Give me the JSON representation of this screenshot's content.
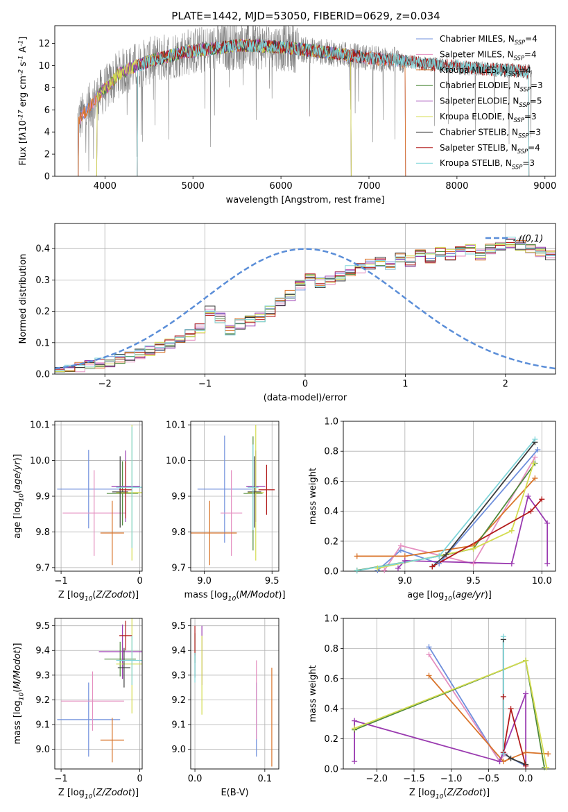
{
  "title": "PLATE=1442, MJD=53050, FIBERID=0629, z=0.034",
  "colors": [
    "#6f8fdc",
    "#e58fc0",
    "#d9742a",
    "#4f8a3c",
    "#9a3bb0",
    "#d4dc50",
    "#3a3a3a",
    "#b21a1a",
    "#7fd5d9"
  ],
  "chart_data": [
    {
      "id": "spectrum",
      "type": "line",
      "xlabel": "wavelength [Angstrom, rest frame]",
      "ylabel": "Flux [f$\\lambda$10$^{-17}$ erg cm$^{-2}$ s$^{-1}$ A$^{-1}$]",
      "xlim": [
        3430,
        9120
      ],
      "ylim": [
        0,
        13.6
      ],
      "xticks": [
        4000,
        5000,
        6000,
        7000,
        8000,
        9000
      ],
      "yticks": [
        0,
        2,
        4,
        6,
        8,
        10,
        12
      ],
      "grid": false,
      "legend_position": "top-right",
      "data_color": "#808080",
      "continuum": {
        "x": [
          3690,
          3750,
          3850,
          3950,
          4050,
          4150,
          4300,
          4500,
          4700,
          4900,
          5100,
          5300,
          5500,
          5700,
          5900,
          6100,
          6300,
          6500,
          6700,
          6900,
          7100,
          7300,
          7500,
          7700,
          7900,
          8100,
          8300,
          8500,
          8700,
          8850
        ],
        "y": [
          5.0,
          5.5,
          6.5,
          7.5,
          8.2,
          9.2,
          9.8,
          10.4,
          10.8,
          11.2,
          11.4,
          11.6,
          11.8,
          11.8,
          11.7,
          11.6,
          11.4,
          11.2,
          11.0,
          10.8,
          10.6,
          10.5,
          10.3,
          10.1,
          10.0,
          9.8,
          9.7,
          9.6,
          9.5,
          9.4
        ]
      },
      "series": [
        {
          "name": "Chabrier MILES, N$_{SSP}$=4",
          "x_start": 3690,
          "x_end": 7420
        },
        {
          "name": "Salpeter MILES, N$_{SSP}$=4",
          "x_start": 3690,
          "x_end": 7420
        },
        {
          "name": "Kroupa MILES, N$_{SSP}$=4",
          "x_start": 3690,
          "x_end": 7420
        },
        {
          "name": "Chabrier ELODIE, N$_{SSP}$=3",
          "x_start": 3900,
          "x_end": 6800
        },
        {
          "name": "Salpeter ELODIE, N$_{SSP}$=5",
          "x_start": 3900,
          "x_end": 6800
        },
        {
          "name": "Kroupa ELODIE, N$_{SSP}$=3",
          "x_start": 3900,
          "x_end": 6800
        },
        {
          "name": "Chabrier STELIB, N$_{SSP}$=3",
          "x_start": 4360,
          "x_end": 8820
        },
        {
          "name": "Salpeter STELIB, N$_{SSP}$=4",
          "x_start": 4360,
          "x_end": 8820
        },
        {
          "name": "Kroupa STELIB, N$_{SSP}$=3",
          "x_start": 4360,
          "x_end": 8820
        }
      ]
    },
    {
      "id": "residuals",
      "type": "line",
      "xlabel": "(data-model)/error",
      "ylabel": "Normed distribution",
      "xlim": [
        -2.5,
        2.5
      ],
      "ylim": [
        0,
        0.48
      ],
      "xticks": [
        -2,
        -1,
        0,
        1,
        2
      ],
      "xtick_labels": [
        "−2",
        "−1",
        "0",
        "1",
        "2"
      ],
      "yticks": [
        0.0,
        0.1,
        0.2,
        0.3,
        0.4
      ],
      "ytick_labels": [
        "0.0",
        "0.1",
        "0.2",
        "0.3",
        "0.4"
      ],
      "grid": true,
      "legend": "$\\mathcal{N}(0,1)$",
      "legend_position": "top-right",
      "bin_width": 0.1,
      "bin_start": -2.5,
      "histogram_base": [
        0.012,
        0.018,
        0.02,
        0.03,
        0.034,
        0.04,
        0.05,
        0.056,
        0.066,
        0.075,
        0.087,
        0.098,
        0.11,
        0.125,
        0.145,
        0.2,
        0.18,
        0.14,
        0.16,
        0.17,
        0.18,
        0.2,
        0.23,
        0.25,
        0.28,
        0.31,
        0.29,
        0.3,
        0.31,
        0.33,
        0.34,
        0.35,
        0.36,
        0.35,
        0.37,
        0.36,
        0.38,
        0.37,
        0.39,
        0.38,
        0.39,
        0.4,
        0.38,
        0.4,
        0.41,
        0.42,
        0.41,
        0.4,
        0.39,
        0.38,
        0.4,
        0.41,
        0.43,
        0.42,
        0.41,
        0.4,
        0.38,
        0.36,
        0.33,
        0.34,
        0.35,
        0.31,
        0.29,
        0.27,
        0.24,
        0.25,
        0.22,
        0.2,
        0.17,
        0.16,
        0.15,
        0.13,
        0.1,
        0.09,
        0.08,
        0.07,
        0.06,
        0.05,
        0.04,
        0.05,
        0.04,
        0.035,
        0.03,
        0.028,
        0.028,
        0.025,
        0.03,
        0.028,
        0.025,
        0.028
      ]
    },
    {
      "id": "age-vs-Z",
      "type": "scatter",
      "xlabel": "Z [log$_{10}$($Z/Z_\\odot$)]",
      "ylabel": "age  [log$_{10}$($age/yr$)]",
      "xlim": [
        -1.08,
        0.03
      ],
      "ylim": [
        9.69,
        10.11
      ],
      "xticks": [
        -1,
        0
      ],
      "xtick_labels": [
        "−1",
        "0"
      ],
      "yticks": [
        9.7,
        9.8,
        9.9,
        10.0,
        10.1
      ],
      "ytick_labels": [
        "9.7",
        "9.8",
        "9.9",
        "10.0",
        "10.1"
      ],
      "grid": true,
      "points": [
        {
          "x": -0.65,
          "y": 9.92,
          "xerr": 0.4,
          "yerr": 0.11
        },
        {
          "x": -0.58,
          "y": 9.853,
          "xerr": 0.4,
          "yerr": 0.12
        },
        {
          "x": -0.35,
          "y": 9.797,
          "xerr": 0.15,
          "yerr": 0.09
        },
        {
          "x": -0.22,
          "y": 9.908,
          "xerr": 0.2,
          "yerr": 0.09
        },
        {
          "x": -0.18,
          "y": 9.928,
          "xerr": 0.18,
          "yerr": 0.1
        },
        {
          "x": -0.1,
          "y": 9.91,
          "xerr": 0.2,
          "yerr": 0.19
        },
        {
          "x": -0.25,
          "y": 9.912,
          "xerr": 0.1,
          "yerr": 0.1
        },
        {
          "x": -0.18,
          "y": 9.918,
          "xerr": 0.08,
          "yerr": 0.08
        },
        {
          "x": -0.1,
          "y": 9.925,
          "xerr": 0.2,
          "yerr": 0.17
        }
      ]
    },
    {
      "id": "age-vs-mass",
      "type": "scatter",
      "xlabel": "mass [log$_{10}$($M/M_\\odot$)]",
      "ylabel": "",
      "xlim": [
        8.9,
        9.55
      ],
      "ylim": [
        9.69,
        10.11
      ],
      "xticks": [
        9.0,
        9.5
      ],
      "xtick_labels": [
        "9.0",
        "9.5"
      ],
      "yticks": [
        9.7,
        9.8,
        9.9,
        10.0,
        10.1
      ],
      "ytick_labels": [
        "9.7",
        "9.8",
        "9.9",
        "10.0",
        "10.1"
      ],
      "grid": true,
      "points": [
        {
          "x": 9.15,
          "y": 9.92,
          "xerr": 0.2,
          "yerr": 0.15
        },
        {
          "x": 9.2,
          "y": 9.853,
          "xerr": 0.08,
          "yerr": 0.12
        },
        {
          "x": 9.04,
          "y": 9.797,
          "xerr": 0.2,
          "yerr": 0.09
        },
        {
          "x": 9.36,
          "y": 9.908,
          "xerr": 0.07,
          "yerr": 0.16
        },
        {
          "x": 9.38,
          "y": 9.928,
          "xerr": 0.07,
          "yerr": 0.1
        },
        {
          "x": 9.38,
          "y": 9.91,
          "xerr": 0.06,
          "yerr": 0.19
        },
        {
          "x": 9.37,
          "y": 9.912,
          "xerr": 0.05,
          "yerr": 0.1
        },
        {
          "x": 9.46,
          "y": 9.918,
          "xerr": 0.06,
          "yerr": 0.07
        },
        {
          "x": 9.36,
          "y": 9.925,
          "xerr": 0.04,
          "yerr": 0.12
        }
      ]
    },
    {
      "id": "weight-vs-age",
      "type": "line",
      "xlabel": "age  [log$_{10}$($age/yr$)]",
      "ylabel": "mass weight",
      "xlim": [
        8.55,
        10.1
      ],
      "ylim": [
        0,
        1.0
      ],
      "xticks": [
        9.0,
        9.5,
        10.0
      ],
      "xtick_labels": [
        "9.0",
        "9.5",
        "10.0"
      ],
      "yticks": [
        0.0,
        0.2,
        0.4,
        0.6,
        0.8,
        1.0
      ],
      "ytick_labels": [
        "0.0",
        "0.2",
        "0.4",
        "0.6",
        "0.8",
        "1.0"
      ],
      "grid": true,
      "series": [
        {
          "x": [
            8.8,
            8.97,
            9.25,
            9.97
          ],
          "y": [
            0.005,
            0.14,
            0.05,
            0.81
          ]
        },
        {
          "x": [
            8.85,
            8.97,
            9.5,
            9.95
          ],
          "y": [
            0.005,
            0.17,
            0.05,
            0.76
          ]
        },
        {
          "x": [
            8.65,
            9.0,
            9.5,
            9.95
          ],
          "y": [
            0.1,
            0.1,
            0.17,
            0.62
          ]
        },
        {
          "x": [
            8.65,
            9.25,
            9.5,
            9.95
          ],
          "y": [
            0.005,
            0.1,
            0.15,
            0.72
          ]
        },
        {
          "x": [
            8.95,
            9.0,
            9.78,
            9.9,
            10.04,
            10.04
          ],
          "y": [
            0.02,
            0.07,
            0.05,
            0.5,
            0.32,
            0.05
          ]
        },
        {
          "x": [
            8.8,
            9.5,
            9.78,
            9.94
          ],
          "y": [
            0.02,
            0.15,
            0.27,
            0.72
          ]
        },
        {
          "x": [
            9.2,
            9.3,
            9.95
          ],
          "y": [
            0.03,
            0.11,
            0.86
          ]
        },
        {
          "x": [
            9.2,
            9.92,
            10.0
          ],
          "y": [
            0.03,
            0.4,
            0.48
          ]
        },
        {
          "x": [
            8.65,
            9.25,
            9.95
          ],
          "y": [
            0.003,
            0.1,
            0.88
          ]
        }
      ]
    },
    {
      "id": "mass-vs-Z",
      "type": "scatter",
      "xlabel": "Z [log$_{10}$($Z/Z_\\odot$)]",
      "ylabel": "mass [log$_{10}$($M/M_\\odot$)]",
      "xlim": [
        -1.08,
        0.03
      ],
      "ylim": [
        8.92,
        9.53
      ],
      "xticks": [
        -1,
        0
      ],
      "xtick_labels": [
        "−1",
        "0"
      ],
      "yticks": [
        9.0,
        9.1,
        9.2,
        9.3,
        9.4,
        9.5
      ],
      "ytick_labels": [
        "9.0",
        "9.1",
        "9.2",
        "9.3",
        "9.4",
        "9.5"
      ],
      "grid": true,
      "points": [
        {
          "x": -0.65,
          "y": 9.12,
          "xerr": 0.4,
          "yerr": 0.15
        },
        {
          "x": -0.6,
          "y": 9.195,
          "xerr": 0.4,
          "yerr": 0.12
        },
        {
          "x": -0.35,
          "y": 9.037,
          "xerr": 0.15,
          "yerr": 0.09
        },
        {
          "x": -0.25,
          "y": 9.365,
          "xerr": 0.2,
          "yerr": 0.07
        },
        {
          "x": -0.22,
          "y": 9.395,
          "xerr": 0.3,
          "yerr": 0.11
        },
        {
          "x": -0.1,
          "y": 9.345,
          "xerr": 0.2,
          "yerr": 0.2
        },
        {
          "x": -0.2,
          "y": 9.33,
          "xerr": 0.08,
          "yerr": 0.08
        },
        {
          "x": -0.18,
          "y": 9.46,
          "xerr": 0.08,
          "yerr": 0.06
        },
        {
          "x": -0.1,
          "y": 9.36,
          "xerr": 0.2,
          "yerr": 0.1
        }
      ]
    },
    {
      "id": "mass-vs-EBV",
      "type": "scatter",
      "xlabel": "E(B-V)",
      "ylabel": "",
      "xlim": [
        -0.006,
        0.12
      ],
      "ylim": [
        8.92,
        9.53
      ],
      "xticks": [
        0.0,
        0.1
      ],
      "xtick_labels": [
        "0.0",
        "0.1"
      ],
      "yticks": [
        9.0,
        9.1,
        9.2,
        9.3,
        9.4,
        9.5
      ],
      "ytick_labels": [
        "9.0",
        "9.1",
        "9.2",
        "9.3",
        "9.4",
        "9.5"
      ],
      "grid": true,
      "points": [
        {
          "x": 0.088,
          "y": 9.12,
          "xerr": 0,
          "yerr": 0.15
        },
        {
          "x": 0.088,
          "y": 9.2,
          "xerr": 0,
          "yerr": 0.16
        },
        {
          "x": 0.11,
          "y": 9.13,
          "xerr": 0,
          "yerr": 0.2
        },
        {
          "x": 0.0,
          "y": 9.41,
          "xerr": 0,
          "yerr": 0.06
        },
        {
          "x": 0.01,
          "y": 9.38,
          "xerr": 0,
          "yerr": 0.12
        },
        {
          "x": 0.01,
          "y": 9.3,
          "xerr": 0,
          "yerr": 0.16
        },
        {
          "x": 0.0,
          "y": 9.34,
          "xerr": 0,
          "yerr": 0.05
        },
        {
          "x": 0.0,
          "y": 9.44,
          "xerr": 0,
          "yerr": 0.06
        },
        {
          "x": 0.0,
          "y": 9.33,
          "xerr": 0,
          "yerr": 0.06
        }
      ]
    },
    {
      "id": "weight-vs-Z",
      "type": "line",
      "xlabel": "Z [log$_{10}$($Z/Z_\\odot$)]",
      "ylabel": "mass weight",
      "xlim": [
        -2.45,
        0.4
      ],
      "ylim": [
        0,
        1.0
      ],
      "xticks": [
        -2.0,
        -1.5,
        -1.0,
        -0.5,
        0.0
      ],
      "xtick_labels": [
        "−2.0",
        "−1.5",
        "−1.0",
        "−0.5",
        "0.0"
      ],
      "yticks": [
        0.0,
        0.2,
        0.4,
        0.6,
        0.8,
        1.0
      ],
      "ytick_labels": [
        "0.0",
        "0.2",
        "0.4",
        "0.6",
        "0.8",
        "1.0"
      ],
      "grid": true,
      "series": [
        {
          "x": [
            -1.3,
            -0.35,
            -0.3,
            0.0
          ],
          "y": [
            0.81,
            0.05,
            0.1,
            0.02
          ]
        },
        {
          "x": [
            -1.3,
            -0.35,
            -0.28
          ],
          "y": [
            0.76,
            0.05,
            0.1
          ]
        },
        {
          "x": [
            -1.3,
            -0.3,
            0.0,
            0.3
          ],
          "y": [
            0.62,
            0.05,
            0.11,
            0.1
          ]
        },
        {
          "x": [
            -2.3,
            0.0,
            0.25
          ],
          "y": [
            0.26,
            0.72,
            0.01
          ]
        },
        {
          "x": [
            -2.3,
            -2.3,
            -0.35,
            0.0,
            0.0
          ],
          "y": [
            0.05,
            0.32,
            0.05,
            0.5,
            0.02
          ]
        },
        {
          "x": [
            -2.3,
            0.0,
            0.28
          ],
          "y": [
            0.27,
            0.72,
            0.01
          ]
        },
        {
          "x": [
            -0.3,
            -0.3,
            -0.2,
            0.0
          ],
          "y": [
            0.86,
            0.11,
            0.07,
            0.03
          ]
        },
        {
          "x": [
            -0.3,
            -0.3,
            -0.2,
            0.0
          ],
          "y": [
            0.48,
            0.11,
            0.4,
            0.02
          ]
        },
        {
          "x": [
            -0.3,
            -0.3
          ],
          "y": [
            0.88,
            0.1
          ]
        }
      ]
    }
  ]
}
